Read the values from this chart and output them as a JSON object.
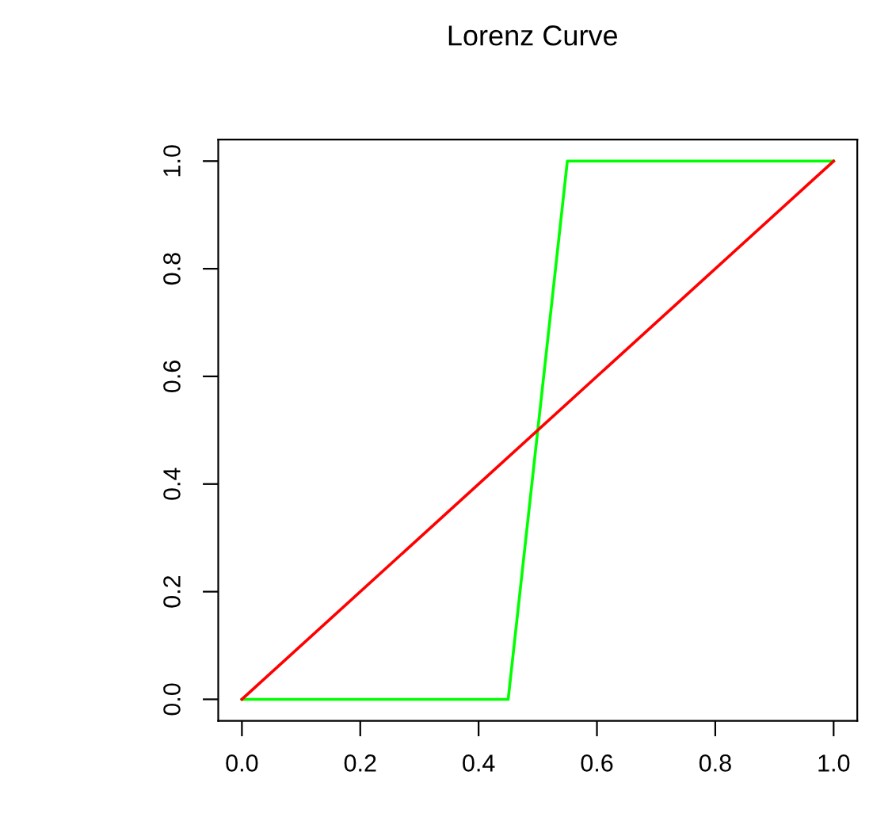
{
  "chart_data": {
    "type": "line",
    "title": "Lorenz Curve",
    "series": [
      {
        "color": "#00ff00",
        "x": [
          0,
          0.45,
          0.55,
          1
        ],
        "values": [
          0,
          0,
          1,
          1
        ]
      },
      {
        "color": "#ff0000",
        "x": [
          0,
          1
        ],
        "values": [
          0,
          1
        ]
      }
    ],
    "xlim": [
      -0.04,
      1.04
    ],
    "ylim": [
      -0.04,
      1.04
    ],
    "xticks": [
      {
        "value": 0,
        "label": "0.0"
      },
      {
        "value": 0.2,
        "label": "0.2"
      },
      {
        "value": 0.4,
        "label": "0.4"
      },
      {
        "value": 0.6,
        "label": "0.6"
      },
      {
        "value": 0.8,
        "label": "0.8"
      },
      {
        "value": 1,
        "label": "1.0"
      }
    ],
    "yticks": [
      {
        "value": 0,
        "label": "0.0"
      },
      {
        "value": 0.2,
        "label": "0.2"
      },
      {
        "value": 0.4,
        "label": "0.4"
      },
      {
        "value": 0.6,
        "label": "0.6"
      },
      {
        "value": 0.8,
        "label": "0.8"
      },
      {
        "value": 1,
        "label": "1.0"
      }
    ],
    "grid": false,
    "legend": false,
    "marker": "none",
    "line_style": "solid"
  }
}
